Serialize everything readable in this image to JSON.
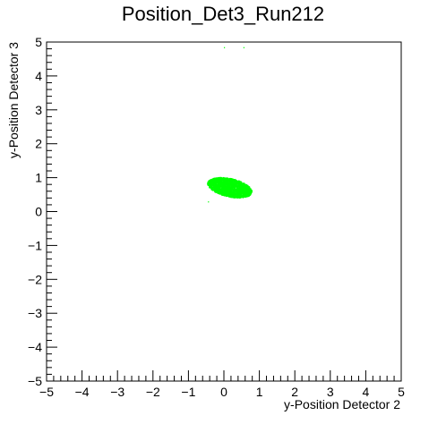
{
  "chart_data": {
    "type": "scatter",
    "title": "Position_Det3_Run212",
    "xlabel": "y-Position Detector 2",
    "ylabel": "y-Position Detector 3",
    "xlim": [
      -5,
      5
    ],
    "ylim": [
      -5,
      5
    ],
    "x_ticks": [
      "−5",
      "−4",
      "−3",
      "−2",
      "−1",
      "0",
      "1",
      "2",
      "3",
      "4",
      "5"
    ],
    "y_ticks": [
      "−5",
      "−4",
      "−3",
      "−2",
      "−1",
      "0",
      "1",
      "2",
      "3",
      "4",
      "5"
    ],
    "grid": false,
    "marker_color": "#00ff00",
    "cluster": {
      "center": [
        0.15,
        0.72
      ],
      "x_range": [
        -0.5,
        0.75
      ],
      "y_range": [
        0.45,
        1.0
      ]
    },
    "outliers": [
      [
        0.0,
        4.85
      ],
      [
        0.55,
        4.85
      ],
      [
        -0.45,
        0.3
      ]
    ]
  }
}
